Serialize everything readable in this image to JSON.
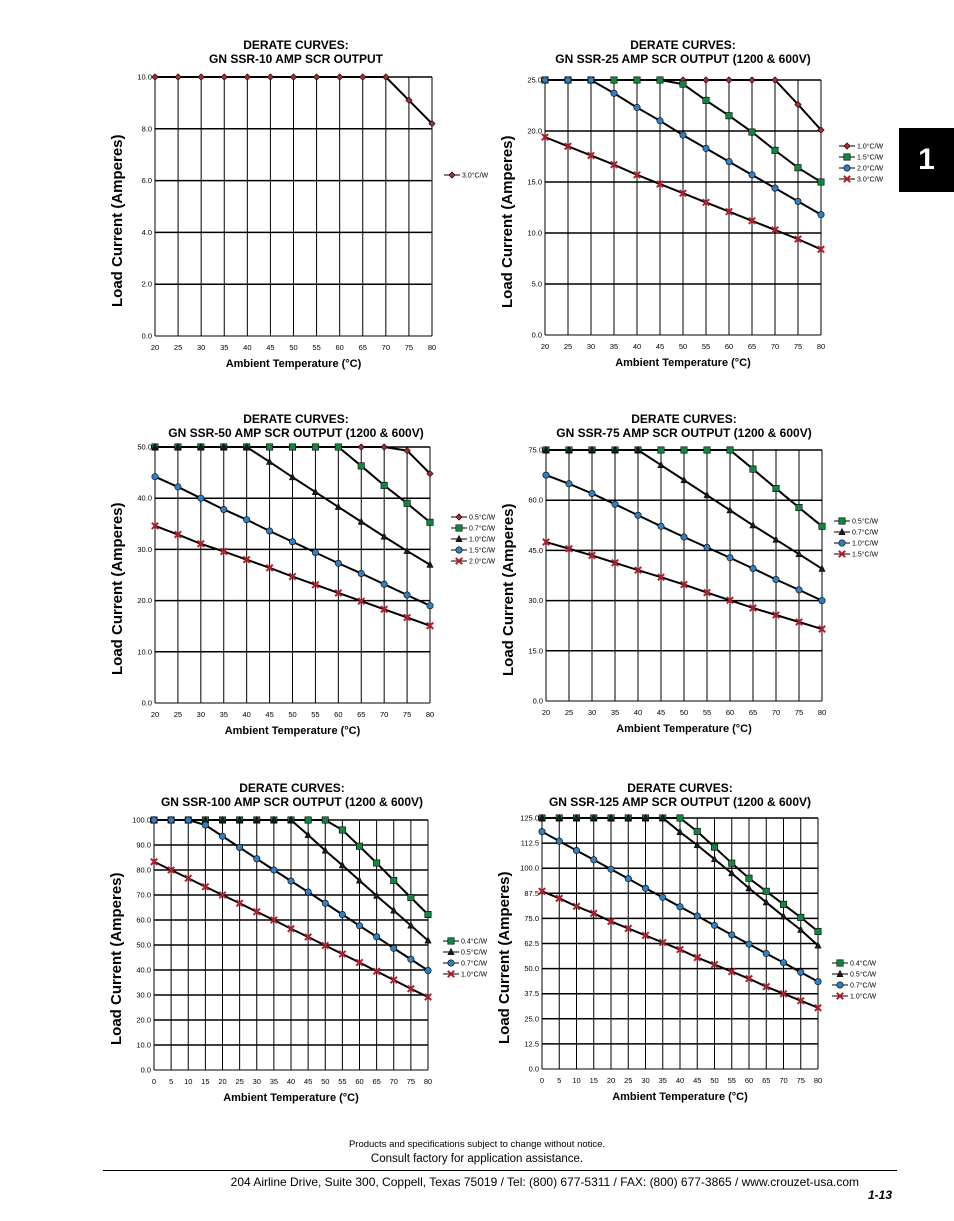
{
  "tab_number": "1",
  "footer": {
    "note": "Products and specifications subject to change without notice.",
    "consult": "Consult factory for application assistance.",
    "address": "204 Airline Drive, Suite 300, Coppell, Texas 75019 / Tel: (800) 677-5311 / FAX: (800) 677-3865 / www.crouzet-usa.com",
    "page": "1-13"
  },
  "colors": {
    "1.0": "#aa2b33",
    "green": "#13853f",
    "black": "#1b1b1b",
    "blue": "#2f7fc1",
    "red": "#b51f2a"
  },
  "chart_data": [
    {
      "type": "line",
      "title_line1": "DERATE CURVES:",
      "title_line2": "GN SSR-10 AMP SCR OUTPUT",
      "xlabel": "Ambient Temperature (°C)",
      "ylabel": "Load Current (Amperes)",
      "xlim": [
        20,
        80
      ],
      "ylim": [
        0,
        10
      ],
      "x_ticks": [
        "20",
        "25",
        "30",
        "35",
        "40",
        "45",
        "50",
        "55",
        "60",
        "65",
        "70",
        "75",
        "80"
      ],
      "y_ticks": [
        "0.0",
        "2.0",
        "4.0",
        "6.0",
        "8.0",
        "10.0"
      ],
      "legend_position": "right",
      "x": [
        20,
        25,
        30,
        35,
        40,
        45,
        50,
        55,
        60,
        65,
        70,
        75,
        80
      ],
      "series": [
        {
          "name": "3.0°C/W",
          "marker": "diamond",
          "color": "#aa2b33",
          "values": [
            10,
            10,
            10,
            10,
            10,
            10,
            10,
            10,
            10,
            10,
            10,
            9.1,
            8.2
          ]
        }
      ]
    },
    {
      "type": "line",
      "title_line1": "DERATE CURVES:",
      "title_line2": "GN SSR-25 AMP SCR OUTPUT (1200 & 600V)",
      "xlabel": "Ambient Temperature (°C)",
      "ylabel": "Load Current (Amperes)",
      "xlim": [
        20,
        80
      ],
      "ylim": [
        0,
        25
      ],
      "x_ticks": [
        "20",
        "25",
        "30",
        "35",
        "40",
        "45",
        "50",
        "55",
        "60",
        "65",
        "70",
        "75",
        "80"
      ],
      "y_ticks": [
        "0.0",
        "5.0",
        "10.0",
        "15.0",
        "20.0",
        "25.0"
      ],
      "legend_position": "right",
      "x": [
        20,
        25,
        30,
        35,
        40,
        45,
        50,
        55,
        60,
        65,
        70,
        75,
        80
      ],
      "series": [
        {
          "name": "1.0°C/W",
          "marker": "diamond",
          "color": "#aa2b33",
          "values": [
            25,
            25,
            25,
            25,
            25,
            25,
            25,
            25,
            25,
            25,
            25,
            22.6,
            20.1
          ]
        },
        {
          "name": "1.5°C/W",
          "marker": "square",
          "color": "#13853f",
          "values": [
            25,
            25,
            25,
            25,
            25,
            25,
            24.6,
            23.0,
            21.5,
            19.9,
            18.1,
            16.4,
            15.0
          ]
        },
        {
          "name": "2.0°C/W",
          "marker": "circle",
          "color": "#2f7fc1",
          "values": [
            25,
            25,
            25,
            23.7,
            22.3,
            21.0,
            19.6,
            18.3,
            17.0,
            15.7,
            14.4,
            13.1,
            11.8
          ]
        },
        {
          "name": "3.0°C/W",
          "marker": "x",
          "color": "#b51f2a",
          "values": [
            19.4,
            18.5,
            17.6,
            16.7,
            15.7,
            14.8,
            13.9,
            13.0,
            12.1,
            11.2,
            10.3,
            9.4,
            8.4
          ]
        }
      ]
    },
    {
      "type": "line",
      "title_line1": "DERATE CURVES:",
      "title_line2": "GN SSR-50 AMP SCR OUTPUT (1200 & 600V)",
      "xlabel": "Ambient Temperature (°C)",
      "ylabel": "Load Current (Amperes)",
      "xlim": [
        20,
        80
      ],
      "ylim": [
        0,
        50
      ],
      "x_ticks": [
        "20",
        "25",
        "30",
        "35",
        "40",
        "45",
        "50",
        "55",
        "60",
        "65",
        "70",
        "75",
        "80"
      ],
      "y_ticks": [
        "0.0",
        "10.0",
        "20.0",
        "30.0",
        "40.0",
        "50.0"
      ],
      "legend_position": "right",
      "x": [
        20,
        25,
        30,
        35,
        40,
        45,
        50,
        55,
        60,
        65,
        70,
        75,
        80
      ],
      "series": [
        {
          "name": "0.5°C/W",
          "marker": "diamond",
          "color": "#aa2b33",
          "values": [
            50,
            50,
            50,
            50,
            50,
            50,
            50,
            50,
            50,
            50,
            50,
            49.3,
            44.8
          ]
        },
        {
          "name": "0.7°C/W",
          "marker": "square",
          "color": "#13853f",
          "values": [
            50,
            50,
            50,
            50,
            50,
            50,
            50,
            50,
            50,
            46.3,
            42.5,
            39.0,
            35.3
          ]
        },
        {
          "name": "1.0°C/W",
          "marker": "triangle",
          "color": "#1b1b1b",
          "values": [
            50,
            50,
            50,
            50,
            50,
            47.1,
            44.1,
            41.2,
            38.3,
            35.4,
            32.5,
            29.7,
            27.0
          ]
        },
        {
          "name": "1.5°C/W",
          "marker": "circle",
          "color": "#2f7fc1",
          "values": [
            44.2,
            42.2,
            40.0,
            37.8,
            35.8,
            33.6,
            31.5,
            29.4,
            27.3,
            25.3,
            23.2,
            21.1,
            19.0
          ]
        },
        {
          "name": "2.0°C/W",
          "marker": "x",
          "color": "#b51f2a",
          "values": [
            34.6,
            32.9,
            31.1,
            29.6,
            28.0,
            26.4,
            24.7,
            23.1,
            21.5,
            19.9,
            18.3,
            16.7,
            15.1
          ]
        }
      ]
    },
    {
      "type": "line",
      "title_line1": "DERATE CURVES:",
      "title_line2": "GN SSR-75 AMP SCR OUTPUT (1200 & 600V)",
      "xlabel": "Ambient Temperature (°C)",
      "ylabel": "Load Current (Amperes)",
      "xlim": [
        20,
        80
      ],
      "ylim": [
        0,
        75
      ],
      "x_ticks": [
        "20",
        "25",
        "30",
        "35",
        "40",
        "45",
        "50",
        "55",
        "60",
        "65",
        "70",
        "75",
        "80"
      ],
      "y_ticks": [
        "0.0",
        "15.0",
        "30.0",
        "45.0",
        "60.0",
        "75.0"
      ],
      "legend_position": "right",
      "x": [
        20,
        25,
        30,
        35,
        40,
        45,
        50,
        55,
        60,
        65,
        70,
        75,
        80
      ],
      "series": [
        {
          "name": "0.5°C/W",
          "marker": "square",
          "color": "#13853f",
          "values": [
            75,
            75,
            75,
            75,
            75,
            75,
            75,
            75,
            75,
            69.3,
            63.5,
            57.8,
            52.2
          ]
        },
        {
          "name": "0.7°C/W",
          "marker": "triangle",
          "color": "#1b1b1b",
          "values": [
            75,
            75,
            75,
            75,
            75,
            70.5,
            66.0,
            61.5,
            57.0,
            52.5,
            48.2,
            43.9,
            39.5
          ]
        },
        {
          "name": "1.0°C/W",
          "marker": "circle",
          "color": "#2f7fc1",
          "values": [
            67.5,
            64.9,
            62.0,
            58.8,
            55.5,
            52.2,
            49.0,
            45.9,
            42.8,
            39.6,
            36.3,
            33.2,
            30.0
          ]
        },
        {
          "name": "1.5°C/W",
          "marker": "x",
          "color": "#b51f2a",
          "values": [
            47.5,
            45.5,
            43.5,
            41.3,
            39.1,
            37.0,
            34.8,
            32.4,
            30.1,
            27.8,
            25.7,
            23.6,
            21.5
          ]
        }
      ]
    },
    {
      "type": "line",
      "title_line1": "DERATE CURVES:",
      "title_line2": "GN SSR-100 AMP SCR OUTPUT (1200 & 600V)",
      "xlabel": "Ambient Temperature (°C)",
      "ylabel": "Load Current (Amperes)",
      "xlim": [
        0,
        80
      ],
      "ylim": [
        0,
        100
      ],
      "x_ticks": [
        "0",
        "5",
        "10",
        "15",
        "20",
        "25",
        "30",
        "35",
        "40",
        "45",
        "50",
        "55",
        "60",
        "65",
        "70",
        "75",
        "80"
      ],
      "y_ticks": [
        "0.0",
        "10.0",
        "20.0",
        "30.0",
        "40.0",
        "50.0",
        "60.0",
        "70.0",
        "80.0",
        "90.0",
        "100.0"
      ],
      "legend_position": "right",
      "x": [
        0,
        5,
        10,
        15,
        20,
        25,
        30,
        35,
        40,
        45,
        50,
        55,
        60,
        65,
        70,
        75,
        80
      ],
      "series": [
        {
          "name": "0.4°C/W",
          "marker": "square",
          "color": "#13853f",
          "values": [
            100,
            100,
            100,
            100,
            100,
            100,
            100,
            100,
            100,
            100,
            100,
            96.0,
            89.5,
            82.8,
            75.8,
            69.0,
            62.2
          ]
        },
        {
          "name": "0.5°C/W",
          "marker": "triangle",
          "color": "#1b1b1b",
          "values": [
            100,
            100,
            100,
            100,
            100,
            100,
            100,
            100,
            100,
            94.0,
            87.8,
            81.9,
            75.8,
            69.7,
            63.8,
            57.8,
            51.8
          ]
        },
        {
          "name": "0.7°C/W",
          "marker": "circle",
          "color": "#2f7fc1",
          "values": [
            100,
            100,
            100,
            98.0,
            93.5,
            89.0,
            84.5,
            80.0,
            75.6,
            71.2,
            66.7,
            62.2,
            57.7,
            53.3,
            48.7,
            44.3,
            39.8
          ]
        },
        {
          "name": "1.0°C/W",
          "marker": "x",
          "color": "#b51f2a",
          "values": [
            83.3,
            80.0,
            76.7,
            73.3,
            70.0,
            66.7,
            63.3,
            60.0,
            56.5,
            53.2,
            49.8,
            46.4,
            43.0,
            39.5,
            36.0,
            32.5,
            29.2
          ]
        }
      ]
    },
    {
      "type": "line",
      "title_line1": "DERATE CURVES:",
      "title_line2": "GN SSR-125 AMP SCR OUTPUT (1200 & 600V)",
      "xlabel": "Ambient Temperature (°C)",
      "ylabel": "Load Current (Amperes)",
      "xlim": [
        0,
        80
      ],
      "ylim": [
        0,
        125
      ],
      "x_ticks": [
        "0",
        "5",
        "10",
        "15",
        "20",
        "25",
        "30",
        "35",
        "40",
        "45",
        "50",
        "55",
        "60",
        "65",
        "70",
        "75",
        "80"
      ],
      "y_ticks": [
        "0.0",
        "12.5",
        "25.0",
        "37.5",
        "50.0",
        "62.5",
        "75.0",
        "87.5",
        "100.0",
        "112.5",
        "125.0"
      ],
      "legend_position": "right",
      "x": [
        0,
        5,
        10,
        15,
        20,
        25,
        30,
        35,
        40,
        45,
        50,
        55,
        60,
        65,
        70,
        75,
        80
      ],
      "series": [
        {
          "name": "0.4°C/W",
          "marker": "square",
          "color": "#13853f",
          "values": [
            125,
            125,
            125,
            125,
            125,
            125,
            125,
            125,
            125,
            118.3,
            110.5,
            102.5,
            95.0,
            88.5,
            82.0,
            75.5,
            68.5
          ]
        },
        {
          "name": "0.5°C/W",
          "marker": "triangle",
          "color": "#1b1b1b",
          "values": [
            125,
            125,
            125,
            125,
            125,
            125,
            125,
            125,
            118.0,
            111.5,
            104.5,
            97.5,
            90.0,
            83.0,
            76.0,
            69.3,
            61.5
          ]
        },
        {
          "name": "0.7°C/W",
          "marker": "circle",
          "color": "#2f7fc1",
          "values": [
            118.2,
            113.5,
            108.8,
            104.2,
            99.5,
            94.8,
            90.0,
            85.5,
            80.8,
            76.2,
            71.5,
            66.8,
            62.2,
            57.5,
            53.0,
            48.2,
            43.5
          ]
        },
        {
          "name": "1.0°C/W",
          "marker": "x",
          "color": "#b51f2a",
          "values": [
            88.5,
            85.0,
            81.0,
            77.5,
            73.5,
            70.0,
            66.5,
            63.0,
            59.5,
            55.5,
            52.0,
            48.5,
            45.0,
            41.0,
            37.5,
            34.0,
            30.5
          ]
        }
      ]
    }
  ]
}
